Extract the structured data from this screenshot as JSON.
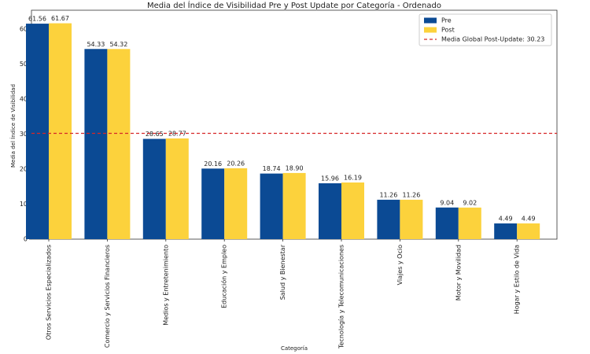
{
  "chart_data": {
    "type": "bar",
    "title": "Media del Índice de Visibilidad Pre y Post Update por Categoría - Ordenado",
    "x_label": "Categoría",
    "y_label": "Media del Índice de Visibilidad",
    "categories": [
      "Otros Servicios Especializados",
      "Comercio y Servicios Financieros",
      "Medios y Entretenimiento",
      "Educación y Empleo",
      "Salud y Bienestar",
      "Tecnología y Telecomunicaciones",
      "Viajes y Ocio",
      "Motor y Movilidad",
      "Hogar y Estilo de Vida"
    ],
    "series": [
      {
        "name": "Pre",
        "color": "#0b4a94",
        "values": [
          61.56,
          54.33,
          28.65,
          20.16,
          18.74,
          15.96,
          11.26,
          9.04,
          4.49
        ],
        "value_labels": [
          "61.56",
          "54.33",
          "28.65",
          "20.16",
          "18.74",
          "15.96",
          "11.26",
          "9.04",
          "4.49"
        ]
      },
      {
        "name": "Post",
        "color": "#fcd23c",
        "values": [
          61.67,
          54.32,
          28.77,
          20.26,
          18.9,
          16.19,
          11.26,
          9.02,
          4.49
        ],
        "value_labels": [
          "61.67",
          "54.32",
          "28.77",
          "20.26",
          "18.90",
          "16.19",
          "11.26",
          "9.02",
          "4.49"
        ]
      }
    ],
    "hline": {
      "value": 30.23,
      "label": "Media Global Post-Update: 30.23",
      "color": "#d62728"
    },
    "ylim": [
      0,
      65.4
    ],
    "yticks": [
      0,
      10,
      20,
      30,
      40,
      50,
      60
    ],
    "legend": "upper right"
  }
}
